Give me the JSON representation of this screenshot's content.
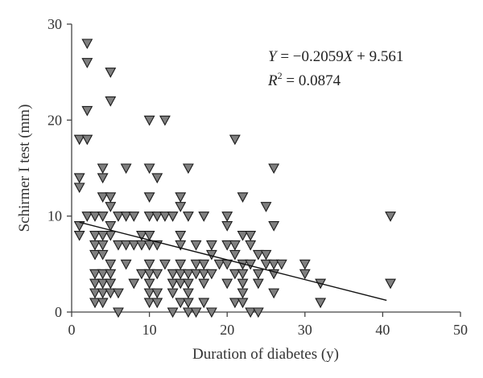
{
  "chart_data": {
    "type": "scatter",
    "xlabel": "Duration of diabetes (y)",
    "ylabel": "Schirmer I test (mm)",
    "xlim": [
      0,
      50
    ],
    "ylim": [
      0,
      30
    ],
    "xticks": [
      0,
      10,
      20,
      30,
      40,
      50
    ],
    "yticks": [
      0,
      10,
      20,
      30
    ],
    "xtick_labels": [
      "0",
      "10",
      "20",
      "30",
      "40",
      "50"
    ],
    "ytick_labels": [
      "0",
      "10",
      "20",
      "30"
    ],
    "marker": "triangle-down",
    "marker_color": "#7f7f7f",
    "regression": {
      "slope": -0.2059,
      "intercept": 9.561,
      "x_range": [
        1,
        40.5
      ],
      "equation_y": "Y",
      "equation_rhs": " = −0.2059",
      "equation_x": "X",
      "equation_tail": " + 9.561",
      "r2_base": "R",
      "r2_sup": "2",
      "r2_value": " = 0.0874"
    },
    "points": [
      [
        2,
        28
      ],
      [
        2,
        26
      ],
      [
        5,
        25
      ],
      [
        5,
        22
      ],
      [
        2,
        21
      ],
      [
        1,
        18
      ],
      [
        2,
        18
      ],
      [
        10,
        20
      ],
      [
        12,
        20
      ],
      [
        21,
        18
      ],
      [
        1,
        14
      ],
      [
        1,
        13
      ],
      [
        4,
        15
      ],
      [
        4,
        14
      ],
      [
        7,
        15
      ],
      [
        10,
        15
      ],
      [
        11,
        14
      ],
      [
        15,
        15
      ],
      [
        26,
        15
      ],
      [
        22,
        12
      ],
      [
        14,
        12
      ],
      [
        4,
        12
      ],
      [
        5,
        12
      ],
      [
        5,
        11
      ],
      [
        10,
        12
      ],
      [
        14,
        11
      ],
      [
        25,
        11
      ],
      [
        1,
        9
      ],
      [
        1,
        8
      ],
      [
        2,
        10
      ],
      [
        3,
        10
      ],
      [
        4,
        10
      ],
      [
        5,
        9
      ],
      [
        5,
        8
      ],
      [
        6,
        10
      ],
      [
        7,
        10
      ],
      [
        8,
        10
      ],
      [
        9,
        8
      ],
      [
        10,
        10
      ],
      [
        11,
        10
      ],
      [
        12,
        10
      ],
      [
        13,
        10
      ],
      [
        15,
        10
      ],
      [
        17,
        10
      ],
      [
        20,
        10
      ],
      [
        20,
        9
      ],
      [
        26,
        9
      ],
      [
        41,
        10
      ],
      [
        41,
        3
      ],
      [
        3,
        8
      ],
      [
        3,
        7
      ],
      [
        3,
        6
      ],
      [
        4,
        8
      ],
      [
        4,
        7
      ],
      [
        4,
        6
      ],
      [
        6,
        7
      ],
      [
        7,
        7
      ],
      [
        8,
        7
      ],
      [
        9,
        7
      ],
      [
        10,
        8
      ],
      [
        10,
        7
      ],
      [
        11,
        7
      ],
      [
        14,
        8
      ],
      [
        14,
        7
      ],
      [
        16,
        7
      ],
      [
        18,
        7
      ],
      [
        20,
        7
      ],
      [
        21,
        7
      ],
      [
        22,
        8
      ],
      [
        23,
        8
      ],
      [
        23,
        7
      ],
      [
        24,
        6
      ],
      [
        25,
        6
      ],
      [
        5,
        5
      ],
      [
        7,
        5
      ],
      [
        10,
        5
      ],
      [
        12,
        5
      ],
      [
        14,
        5
      ],
      [
        16,
        5
      ],
      [
        17,
        5
      ],
      [
        18,
        6
      ],
      [
        19,
        5
      ],
      [
        20,
        5
      ],
      [
        21,
        6
      ],
      [
        22,
        5
      ],
      [
        23,
        5
      ],
      [
        25,
        5
      ],
      [
        26,
        5
      ],
      [
        27,
        5
      ],
      [
        30,
        5
      ],
      [
        30,
        4
      ],
      [
        3,
        4
      ],
      [
        4,
        4
      ],
      [
        5,
        4
      ],
      [
        9,
        4
      ],
      [
        10,
        4
      ],
      [
        11,
        4
      ],
      [
        13,
        4
      ],
      [
        14,
        4
      ],
      [
        15,
        4
      ],
      [
        16,
        4
      ],
      [
        17,
        4
      ],
      [
        18,
        4
      ],
      [
        21,
        4
      ],
      [
        22,
        4
      ],
      [
        24,
        4
      ],
      [
        26,
        4
      ],
      [
        3,
        3
      ],
      [
        4,
        3
      ],
      [
        5,
        3
      ],
      [
        8,
        3
      ],
      [
        10,
        3
      ],
      [
        13,
        3
      ],
      [
        14,
        3
      ],
      [
        15,
        3
      ],
      [
        17,
        3
      ],
      [
        20,
        3
      ],
      [
        22,
        3
      ],
      [
        24,
        3
      ],
      [
        32,
        3
      ],
      [
        3,
        2
      ],
      [
        4,
        2
      ],
      [
        5,
        2
      ],
      [
        6,
        2
      ],
      [
        10,
        2
      ],
      [
        11,
        2
      ],
      [
        13,
        2
      ],
      [
        15,
        2
      ],
      [
        22,
        2
      ],
      [
        26,
        2
      ],
      [
        3,
        1
      ],
      [
        4,
        1
      ],
      [
        10,
        1
      ],
      [
        11,
        1
      ],
      [
        14,
        1
      ],
      [
        15,
        1
      ],
      [
        17,
        1
      ],
      [
        21,
        1
      ],
      [
        22,
        1
      ],
      [
        32,
        1
      ],
      [
        6,
        0
      ],
      [
        13,
        0
      ],
      [
        15,
        0
      ],
      [
        16,
        0
      ],
      [
        18,
        0
      ],
      [
        23,
        0
      ],
      [
        24,
        0
      ]
    ]
  }
}
